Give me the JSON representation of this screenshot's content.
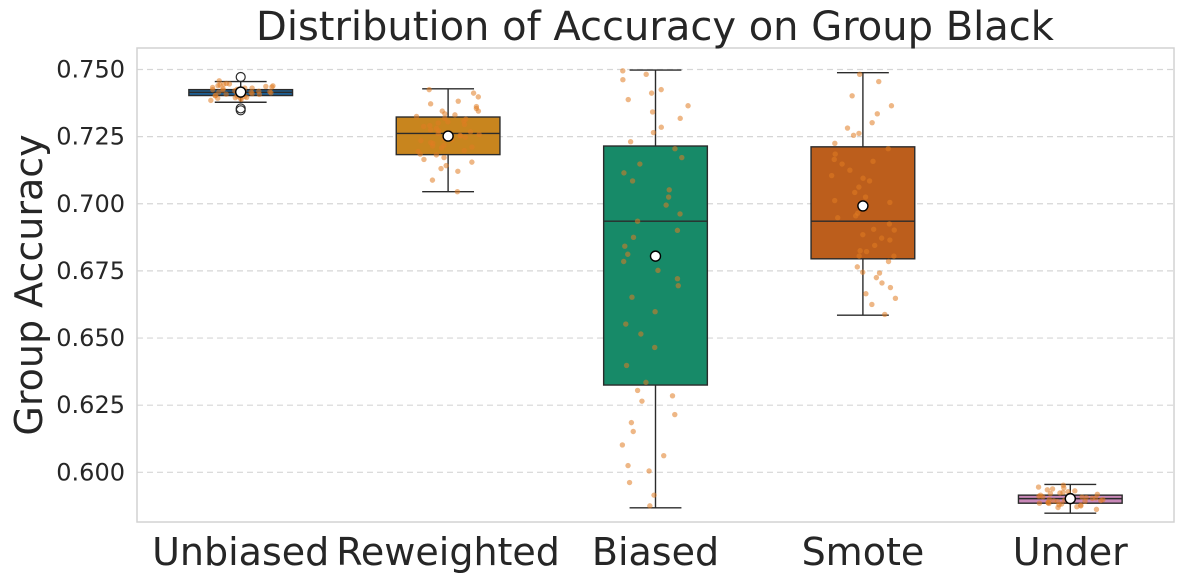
{
  "chart_data": {
    "type": "box",
    "title": "Distribution of Accuracy on Group Black",
    "xlabel": "",
    "ylabel": "Group Accuracy",
    "ylim": [
      0.5815,
      0.758
    ],
    "yticks": [
      0.6,
      0.625,
      0.65,
      0.675,
      0.7,
      0.725,
      0.75
    ],
    "ytick_labels": [
      "0.600",
      "0.625",
      "0.650",
      "0.675",
      "0.700",
      "0.725",
      "0.750"
    ],
    "grid": "y-dashed",
    "categories": [
      "Unbiased",
      "Reweighted",
      "Biased",
      "Smote",
      "Under"
    ],
    "boxes": [
      {
        "label": "Unbiased",
        "color": "#1f5f93",
        "whislo": 0.7378,
        "q1": 0.7403,
        "median": 0.7415,
        "q3": 0.7425,
        "whishi": 0.7455,
        "mean": 0.7416,
        "fliers": [
          0.7472,
          0.7355,
          0.7348
        ]
      },
      {
        "label": "Reweighted",
        "color": "#c8851e",
        "whislo": 0.7045,
        "q1": 0.7183,
        "median": 0.7262,
        "q3": 0.7323,
        "whishi": 0.7428,
        "mean": 0.7252,
        "fliers": []
      },
      {
        "label": "Biased",
        "color": "#178a68",
        "whislo": 0.5868,
        "q1": 0.6325,
        "median": 0.6935,
        "q3": 0.7215,
        "whishi": 0.7498,
        "mean": 0.6805,
        "fliers": []
      },
      {
        "label": "Smote",
        "color": "#bc5e1c",
        "whislo": 0.6585,
        "q1": 0.6795,
        "median": 0.6935,
        "q3": 0.7212,
        "whishi": 0.7488,
        "mean": 0.6992,
        "fliers": []
      },
      {
        "label": "Under",
        "color": "#c988b8",
        "whislo": 0.5848,
        "q1": 0.5885,
        "median": 0.5902,
        "q3": 0.5915,
        "whishi": 0.5955,
        "mean": 0.5902,
        "fliers": []
      }
    ],
    "strip_points": {
      "color": "#e07b22",
      "values": [
        [
          0.7418,
          0.7431,
          0.7402,
          0.7445,
          0.7412,
          0.7389,
          0.7425,
          0.7437,
          0.7396,
          0.7421,
          0.7448,
          0.7407,
          0.7415,
          0.7433,
          0.7392,
          0.7428,
          0.741,
          0.744,
          0.7399,
          0.7422,
          0.7458,
          0.7385,
          0.7417,
          0.7435,
          0.7404,
          0.7426,
          0.7413,
          0.7442,
          0.7395,
          0.742,
          0.7431,
          0.7408,
          0.7416,
          0.7439,
          0.7401,
          0.7424,
          0.7411,
          0.7446,
          0.7393,
          0.7419
        ],
        [
          0.7262,
          0.7301,
          0.7185,
          0.7355,
          0.7228,
          0.7412,
          0.7142,
          0.7275,
          0.7331,
          0.7208,
          0.7248,
          0.7382,
          0.7165,
          0.7291,
          0.7318,
          0.7235,
          0.7195,
          0.7345,
          0.7255,
          0.7121,
          0.7398,
          0.7281,
          0.7218,
          0.7305,
          0.7172,
          0.7268,
          0.7335,
          0.7242,
          0.7088,
          0.7372,
          0.7198,
          0.7288,
          0.7225,
          0.7315,
          0.7155,
          0.7258,
          0.7362,
          0.7211,
          0.7295,
          0.7045,
          0.7238,
          0.7325,
          0.7182,
          0.7272,
          0.7425,
          0.7131,
          0.7252,
          0.7308,
          0.7215,
          0.7345
        ],
        [
          0.7495,
          0.7482,
          0.7425,
          0.7412,
          0.7388,
          0.7365,
          0.7342,
          0.7318,
          0.7285,
          0.7265,
          0.7231,
          0.7205,
          0.7172,
          0.7148,
          0.7115,
          0.7085,
          0.7052,
          0.7025,
          0.6995,
          0.6962,
          0.6935,
          0.6901,
          0.6875,
          0.6842,
          0.6812,
          0.6785,
          0.6752,
          0.6721,
          0.6695,
          0.6652,
          0.6598,
          0.6552,
          0.6515,
          0.6465,
          0.6398,
          0.6335,
          0.6305,
          0.6265,
          0.6215,
          0.6185,
          0.6152,
          0.6102,
          0.6062,
          0.6025,
          0.6005,
          0.5962,
          0.5915,
          0.5875,
          0.7462,
          0.6285
        ],
        [
          0.7482,
          0.7455,
          0.7402,
          0.7365,
          0.7335,
          0.7302,
          0.7282,
          0.7255,
          0.7225,
          0.7205,
          0.7185,
          0.7165,
          0.7148,
          0.7125,
          0.7105,
          0.7085,
          0.7062,
          0.7042,
          0.7025,
          0.7005,
          0.6985,
          0.6965,
          0.6948,
          0.6925,
          0.6905,
          0.6885,
          0.6865,
          0.6845,
          0.6825,
          0.6805,
          0.6785,
          0.6765,
          0.6745,
          0.6725,
          0.6705,
          0.6688,
          0.6665,
          0.6648,
          0.6625,
          0.6588,
          0.7262,
          0.7012,
          0.6902,
          0.6822,
          0.7158,
          0.6955,
          0.6742,
          0.6872,
          0.7095,
          0.6805
        ],
        [
          0.5905,
          0.5892,
          0.5915,
          0.5882,
          0.5928,
          0.5898,
          0.5875,
          0.5935,
          0.5908,
          0.5888,
          0.5921,
          0.5902,
          0.5869,
          0.5945,
          0.5895,
          0.5912,
          0.5885,
          0.5925,
          0.5899,
          0.5878,
          0.5938,
          0.5906,
          0.5891,
          0.5918,
          0.5872,
          0.5952,
          0.5903,
          0.5884,
          0.5923,
          0.5897,
          0.5862,
          0.5931,
          0.5909,
          0.5887,
          0.5916,
          0.5894,
          0.5942,
          0.5901,
          0.5879,
          0.5911
        ]
      ]
    }
  }
}
